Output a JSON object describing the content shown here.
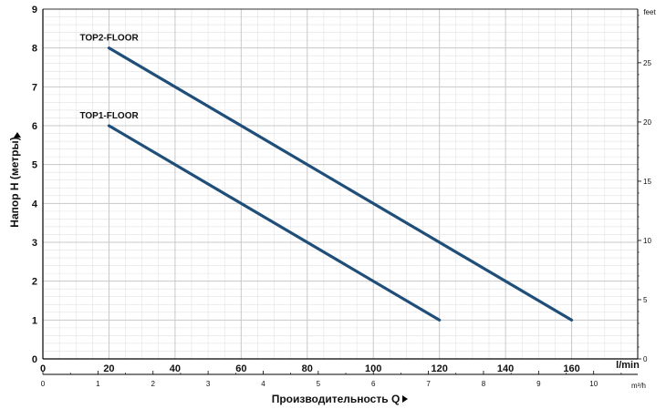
{
  "chart_data": {
    "type": "line",
    "xlabel": "Производительность Q",
    "ylabel": "Напор H (метры)",
    "x_unit": "l/min",
    "x2_unit": "m³/h",
    "y2_unit": "feet",
    "xlim": [
      0,
      180
    ],
    "ylim": [
      0,
      9
    ],
    "x2lim": [
      0,
      10.8
    ],
    "y2lim": [
      0,
      29.53
    ],
    "x_ticks": [
      "0",
      "20",
      "40",
      "60",
      "80",
      "100",
      "120",
      "140",
      "160"
    ],
    "y_ticks": [
      "0",
      "1",
      "2",
      "3",
      "4",
      "5",
      "6",
      "7",
      "8",
      "9"
    ],
    "x2_ticks": [
      "0",
      "1",
      "2",
      "3",
      "4",
      "5",
      "6",
      "7",
      "8",
      "9",
      "10"
    ],
    "y2_ticks": [
      "0",
      "5",
      "10",
      "15",
      "20",
      "25"
    ],
    "grid": true,
    "series": [
      {
        "name": "TOP2-FLOOR",
        "x": [
          20,
          160
        ],
        "y": [
          8,
          1
        ]
      },
      {
        "name": "TOP1-FLOOR",
        "x": [
          20,
          120
        ],
        "y": [
          6,
          1
        ]
      }
    ],
    "colors": {
      "line": "#1f4e79",
      "grid": "#c8c8c8",
      "minor_grid": "#e2e2e2",
      "axis": "#000000"
    }
  }
}
